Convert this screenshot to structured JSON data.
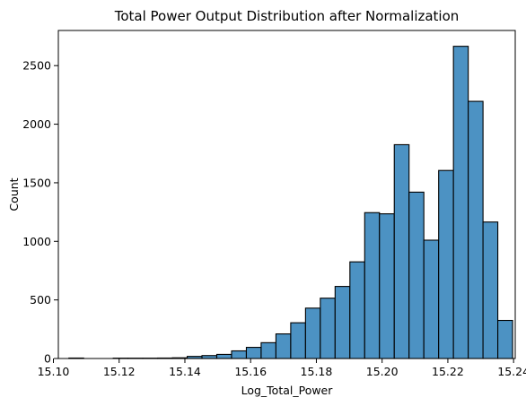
{
  "chart_data": {
    "type": "bar",
    "subtype": "histogram",
    "title": "Total Power Output Distribution after Normalization",
    "xlabel": "Log_Total_Power",
    "ylabel": "Count",
    "xlim": [
      15.1015,
      15.2405
    ],
    "ylim": [
      0,
      2800
    ],
    "x_ticks": [
      "15.10",
      "15.12",
      "15.14",
      "15.16",
      "15.18",
      "15.20",
      "15.22",
      "15.24"
    ],
    "y_ticks": [
      "0",
      "500",
      "1000",
      "1500",
      "2000",
      "2500"
    ],
    "bar_color": "#4c92c3",
    "edge_color": "#000000",
    "grid": false,
    "bins": [
      {
        "left": 15.1047,
        "right": 15.1092,
        "count": 4
      },
      {
        "left": 15.1092,
        "right": 15.1137,
        "count": 0
      },
      {
        "left": 15.1137,
        "right": 15.1182,
        "count": 0
      },
      {
        "left": 15.1182,
        "right": 15.1227,
        "count": 3
      },
      {
        "left": 15.1227,
        "right": 15.1272,
        "count": 3
      },
      {
        "left": 15.1272,
        "right": 15.1317,
        "count": 3
      },
      {
        "left": 15.1317,
        "right": 15.1362,
        "count": 4
      },
      {
        "left": 15.1362,
        "right": 15.1407,
        "count": 6
      },
      {
        "left": 15.1407,
        "right": 15.1452,
        "count": 18
      },
      {
        "left": 15.1452,
        "right": 15.1497,
        "count": 25
      },
      {
        "left": 15.1497,
        "right": 15.1542,
        "count": 35
      },
      {
        "left": 15.1542,
        "right": 15.1587,
        "count": 65
      },
      {
        "left": 15.1587,
        "right": 15.1632,
        "count": 95
      },
      {
        "left": 15.1632,
        "right": 15.1677,
        "count": 135
      },
      {
        "left": 15.1677,
        "right": 15.1722,
        "count": 210
      },
      {
        "left": 15.1722,
        "right": 15.1767,
        "count": 305
      },
      {
        "left": 15.1767,
        "right": 15.1812,
        "count": 430
      },
      {
        "left": 15.1812,
        "right": 15.1857,
        "count": 515
      },
      {
        "left": 15.1857,
        "right": 15.1902,
        "count": 615
      },
      {
        "left": 15.1902,
        "right": 15.1947,
        "count": 825
      },
      {
        "left": 15.1947,
        "right": 15.1992,
        "count": 1245
      },
      {
        "left": 15.1992,
        "right": 15.2037,
        "count": 1235
      },
      {
        "left": 15.2037,
        "right": 15.2082,
        "count": 1825
      },
      {
        "left": 15.2082,
        "right": 15.2127,
        "count": 1420
      },
      {
        "left": 15.2127,
        "right": 15.2172,
        "count": 1010
      },
      {
        "left": 15.2172,
        "right": 15.2217,
        "count": 1605
      },
      {
        "left": 15.2217,
        "right": 15.2262,
        "count": 2665
      },
      {
        "left": 15.2262,
        "right": 15.2307,
        "count": 2195
      },
      {
        "left": 15.2307,
        "right": 15.2352,
        "count": 1165
      },
      {
        "left": 15.2352,
        "right": 15.2397,
        "count": 325
      }
    ]
  }
}
